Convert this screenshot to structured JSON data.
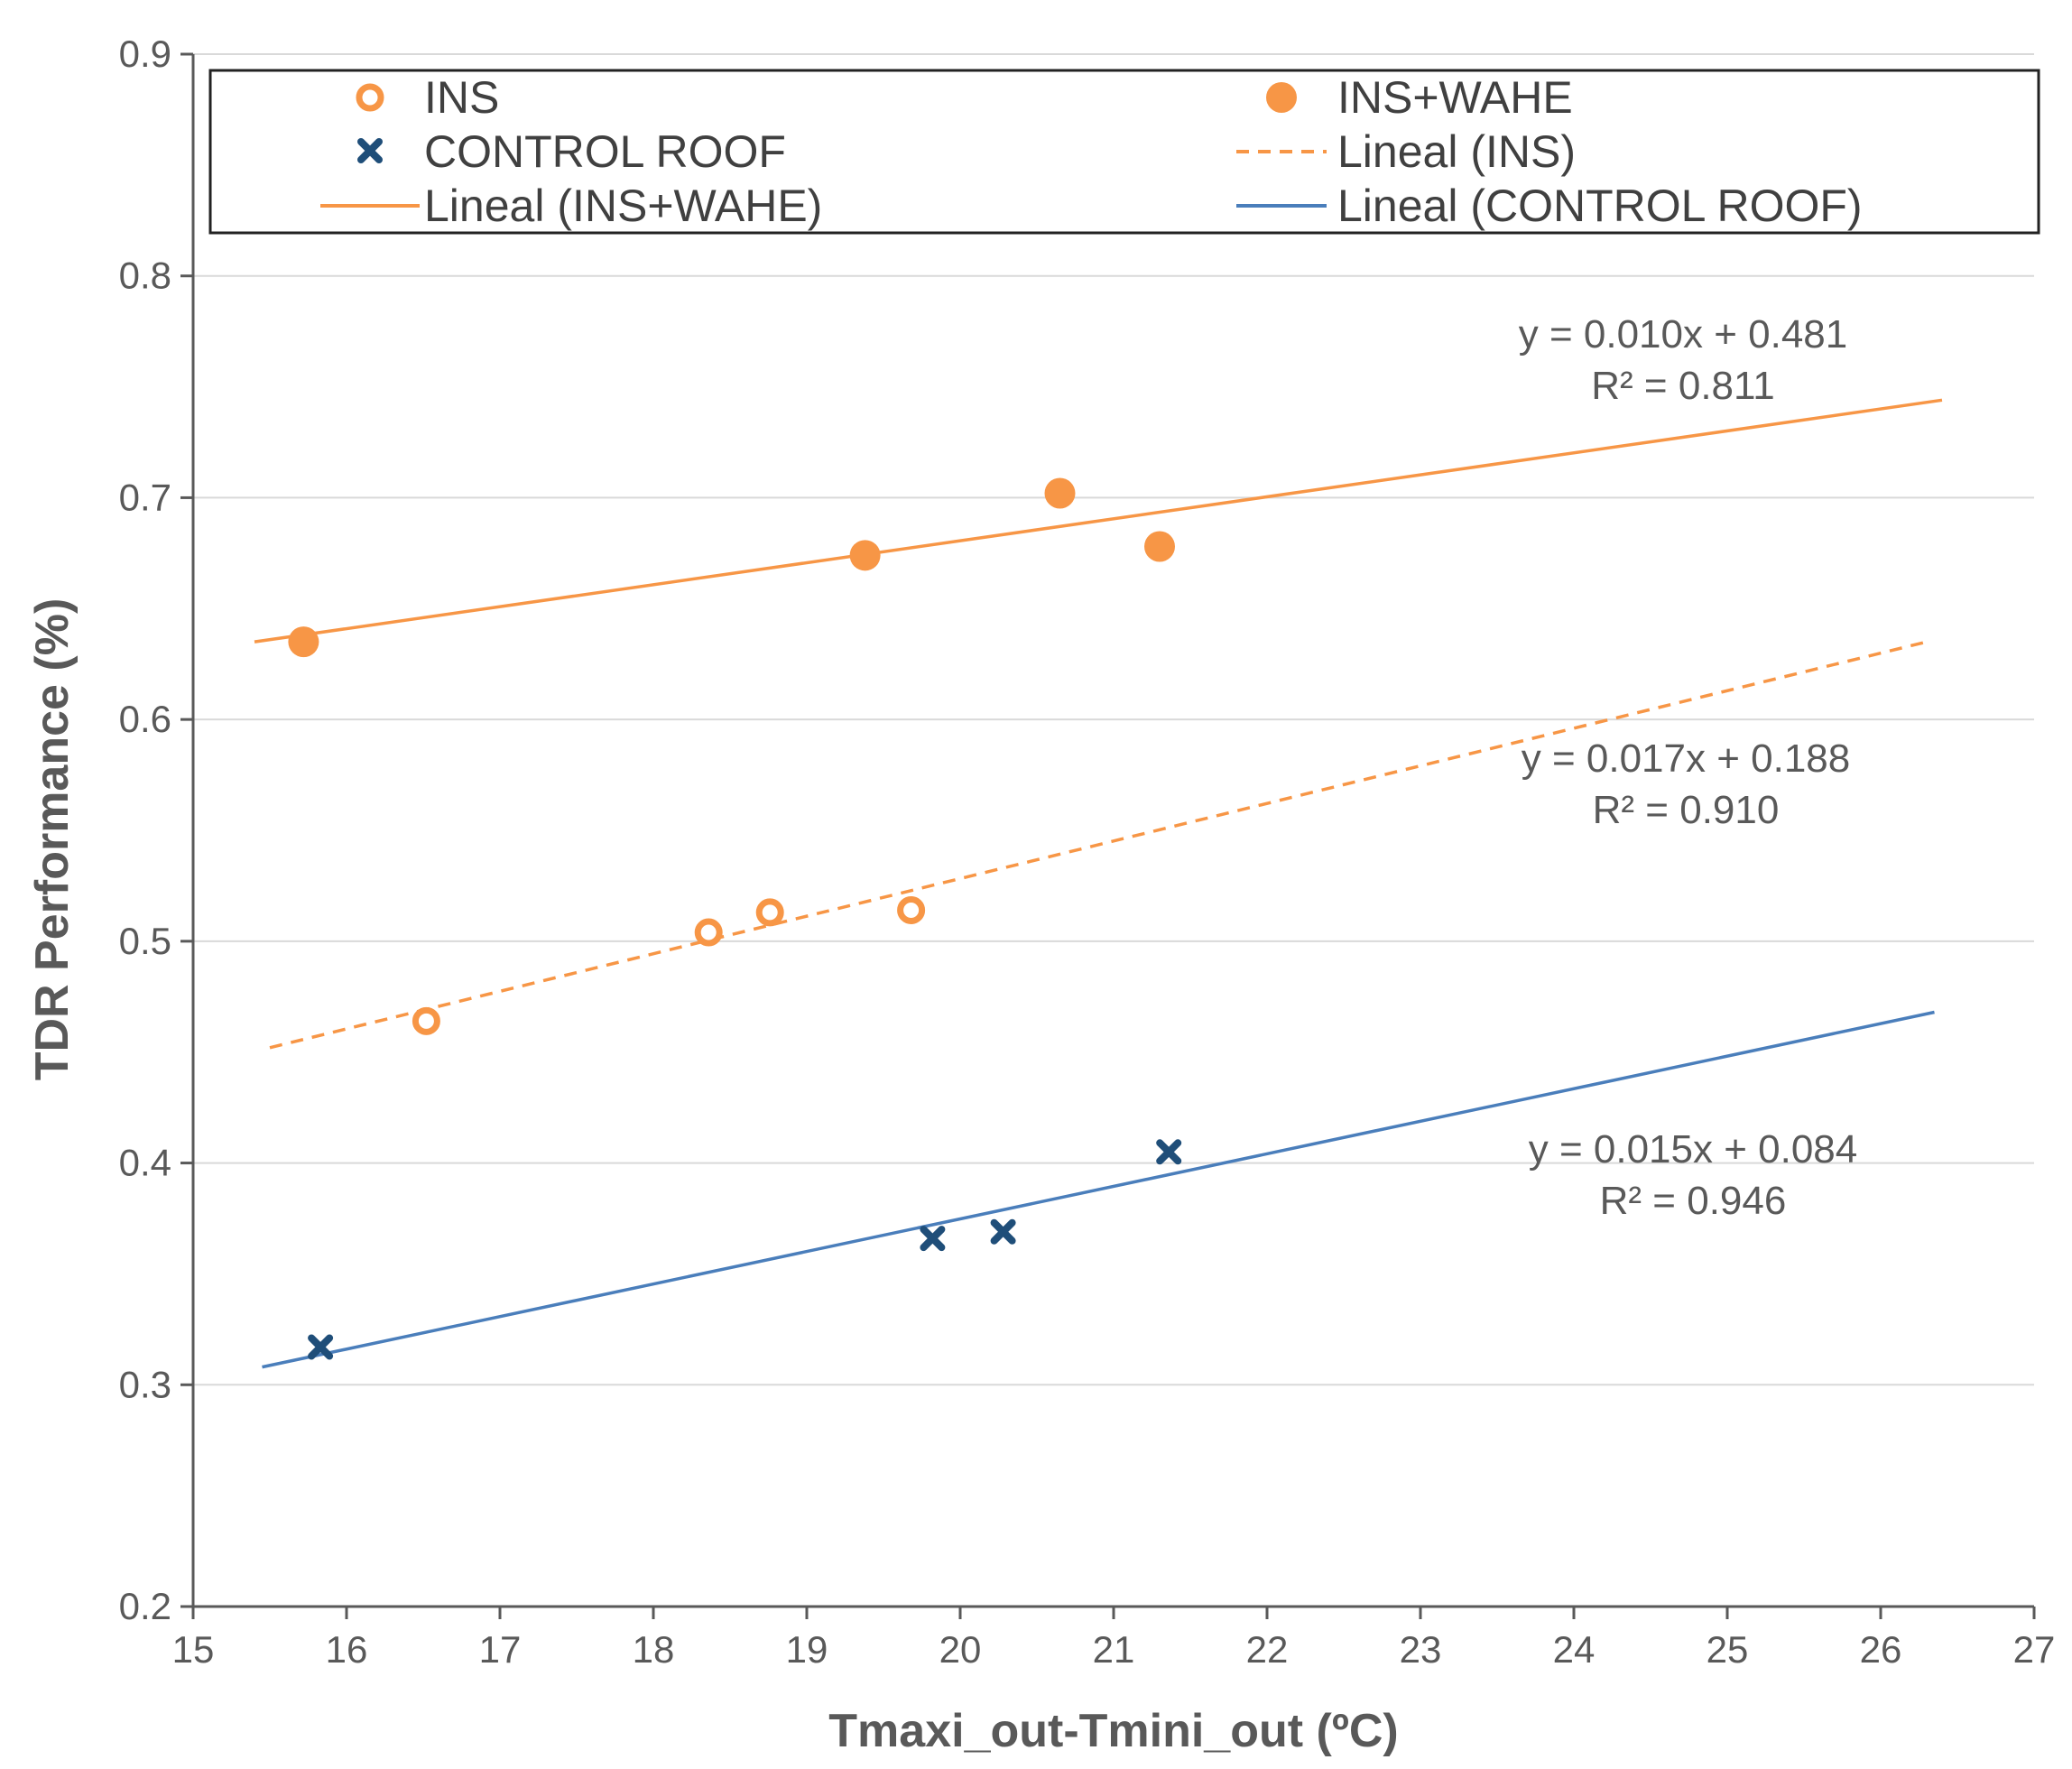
{
  "chart_data": {
    "type": "scatter",
    "title": "",
    "xlabel": "Tmaxi_out-Tmini_out (ºC)",
    "ylabel": "TDR Performance (%)",
    "xlim": [
      15,
      27
    ],
    "ylim": [
      0.2,
      0.9
    ],
    "xticks": [
      "15",
      "16",
      "17",
      "18",
      "19",
      "20",
      "21",
      "22",
      "23",
      "24",
      "25",
      "26",
      "27"
    ],
    "yticks": [
      "0.2",
      "0.3",
      "0.4",
      "0.5",
      "0.6",
      "0.7",
      "0.8",
      "0.9"
    ],
    "grid": "horizontal",
    "legend_position": "top",
    "colors": {
      "orange": "#F79646",
      "navy": "#1F4E79",
      "blue": "#4A7EBB",
      "axis": "#595959",
      "grid": "#D9D9D9"
    },
    "series": [
      {
        "name": "INS",
        "marker": "open-circle",
        "color": "#F79646",
        "points": [
          [
            16.52,
            0.464
          ],
          [
            18.36,
            0.504
          ],
          [
            18.76,
            0.513
          ],
          [
            19.68,
            0.514
          ]
        ]
      },
      {
        "name": "INS+WAHE",
        "marker": "filled-circle",
        "color": "#F79646",
        "points": [
          [
            15.72,
            0.635
          ],
          [
            19.38,
            0.674
          ],
          [
            20.65,
            0.702
          ],
          [
            21.3,
            0.678
          ]
        ]
      },
      {
        "name": "CONTROL ROOF",
        "marker": "x",
        "color": "#1F4E79",
        "points": [
          [
            15.83,
            0.317
          ],
          [
            19.82,
            0.366
          ],
          [
            20.28,
            0.369
          ],
          [
            21.36,
            0.405
          ]
        ]
      }
    ],
    "trendlines": [
      {
        "name": "Lineal (INS)",
        "style": "dashed",
        "color": "#F79646",
        "x": [
          15.5,
          26.3
        ],
        "y": [
          0.452,
          0.635
        ]
      },
      {
        "name": "Lineal (INS+WAHE)",
        "style": "solid",
        "color": "#F79646",
        "x": [
          15.4,
          26.4
        ],
        "y": [
          0.635,
          0.744
        ]
      },
      {
        "name": "Lineal (CONTROL ROOF)",
        "style": "solid",
        "color": "#4A7EBB",
        "x": [
          15.45,
          26.35
        ],
        "y": [
          0.308,
          0.468
        ]
      }
    ],
    "legend": [
      {
        "label": "INS",
        "symbol": "open-circle"
      },
      {
        "label": "INS+WAHE",
        "symbol": "filled-circle"
      },
      {
        "label": "CONTROL ROOF",
        "symbol": "x"
      },
      {
        "label": "Lineal (INS)",
        "symbol": "dashed-orange"
      },
      {
        "label": "Lineal (INS+WAHE)",
        "symbol": "solid-orange"
      },
      {
        "label": "Lineal (CONTROL ROOF)",
        "symbol": "solid-blue"
      }
    ],
    "annotations": [
      {
        "eq": "y = 0.010x + 0.481",
        "r2": "R² = 0.811"
      },
      {
        "eq": "y = 0.017x + 0.188",
        "r2": "R² = 0.910"
      },
      {
        "eq": "y = 0.015x + 0.084",
        "r2": "R² = 0.946"
      }
    ]
  }
}
